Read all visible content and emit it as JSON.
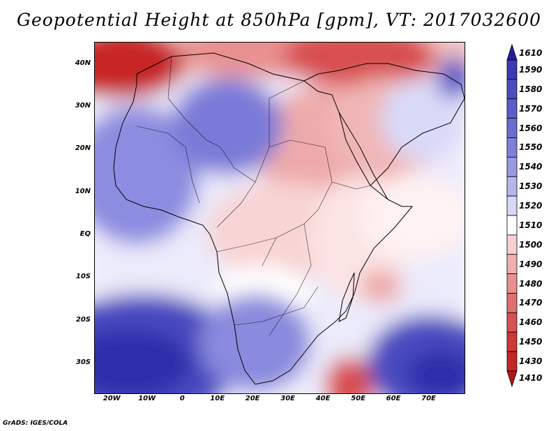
{
  "title": "Geopotential Height at 850hPa [gpm], VT: 2017032600",
  "credit": "GrADS: IGES/COLA",
  "map": {
    "variable": "Geopotential Height at 850hPa",
    "units": "gpm",
    "valid_time": "2017032600",
    "lon_range": [
      -25,
      80
    ],
    "lat_range": [
      -37,
      45
    ],
    "lat_ticks": [
      {
        "value": 40,
        "label": "40N"
      },
      {
        "value": 30,
        "label": "30N"
      },
      {
        "value": 20,
        "label": "20N"
      },
      {
        "value": 10,
        "label": "10N"
      },
      {
        "value": 0,
        "label": "EQ"
      },
      {
        "value": -10,
        "label": "10S"
      },
      {
        "value": -20,
        "label": "20S"
      },
      {
        "value": -30,
        "label": "30S"
      }
    ],
    "lon_ticks": [
      {
        "value": -20,
        "label": "20W"
      },
      {
        "value": -10,
        "label": "10W"
      },
      {
        "value": 0,
        "label": "0"
      },
      {
        "value": 10,
        "label": "10E"
      },
      {
        "value": 20,
        "label": "20E"
      },
      {
        "value": 30,
        "label": "30E"
      },
      {
        "value": 40,
        "label": "40E"
      },
      {
        "value": 50,
        "label": "50E"
      },
      {
        "value": 60,
        "label": "60E"
      },
      {
        "value": 70,
        "label": "70E"
      }
    ],
    "colors": {
      "blue_deep": "#2e2eaa",
      "blue_mid": "#6464d2",
      "blue_light": "#a9a9ec",
      "blue_pale": "#d9d9f8",
      "white": "#ffffff",
      "red_pale": "#f8d8d8",
      "red_light": "#eeaaaa",
      "red_mid": "#e07070",
      "red_deep": "#c82828"
    }
  },
  "colorbar": {
    "labels": [
      "1610",
      "1590",
      "1580",
      "1570",
      "1560",
      "1550",
      "1540",
      "1530",
      "1520",
      "1510",
      "1500",
      "1490",
      "1480",
      "1470",
      "1460",
      "1450",
      "1430",
      "1410"
    ],
    "colors": [
      "#2a1a9e",
      "#3a3ab4",
      "#4c4cc0",
      "#5c5cc8",
      "#6c6cd0",
      "#8080da",
      "#9a9ae2",
      "#b6b6ec",
      "#d8d8f8",
      "#ffffff",
      "#f8d0d0",
      "#f0b0b0",
      "#e89090",
      "#e07070",
      "#d85050",
      "#d03838",
      "#c42626",
      "#b01818"
    ]
  }
}
